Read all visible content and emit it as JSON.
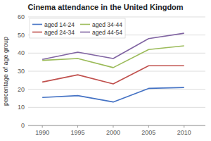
{
  "chart_data": {
    "type": "line",
    "title": "Cinema attendance in the United Kingdom",
    "ylabel": "percentage of age group",
    "x": [
      1990,
      1995,
      2000,
      2005,
      2010
    ],
    "series": [
      {
        "name": "aged 14-24",
        "color": "#4472c4",
        "values": [
          15.5,
          16.5,
          13.0,
          20.5,
          21.0
        ]
      },
      {
        "name": "aged 24-34",
        "color": "#c0504d",
        "values": [
          24.0,
          28.0,
          23.0,
          33.0,
          33.0
        ]
      },
      {
        "name": "aged 34-44",
        "color": "#9bbb59",
        "values": [
          36.0,
          37.0,
          32.0,
          42.0,
          44.0
        ]
      },
      {
        "name": "aged 44-54",
        "color": "#8064a2",
        "values": [
          36.5,
          40.5,
          37.0,
          48.0,
          51.0
        ]
      }
    ],
    "xlim": [
      1988,
      2013
    ],
    "xticks": [
      1990,
      1995,
      2000,
      2005,
      2010
    ],
    "ylim": [
      0,
      60
    ],
    "yticks": [
      0,
      10,
      20,
      30,
      40,
      50,
      60
    ],
    "grid": true,
    "legend": "upper left"
  }
}
